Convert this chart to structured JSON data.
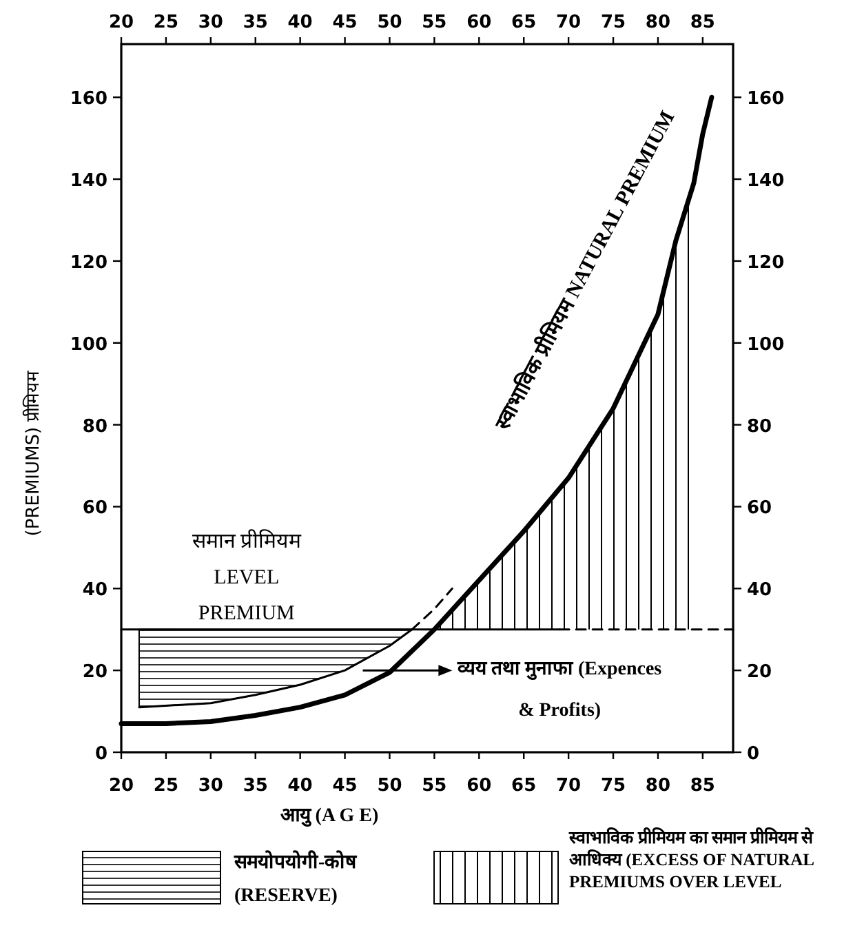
{
  "chart_data": {
    "type": "line",
    "xlabel": "आयु (A G E)",
    "ylabel": "(PREMIUMS) प्रीमियम",
    "xlim": [
      20,
      88.4
    ],
    "xticks": [
      20,
      25,
      30,
      35,
      40,
      45,
      50,
      55,
      60,
      65,
      70,
      75,
      80,
      85
    ],
    "x2lim": [
      20,
      88.4
    ],
    "x2ticks": [
      20,
      25,
      30,
      35,
      40,
      45,
      50,
      55,
      60,
      65,
      70,
      75,
      80,
      85
    ],
    "ylim": [
      0,
      173
    ],
    "yticks": [
      0,
      20,
      40,
      60,
      80,
      100,
      120,
      140,
      160
    ],
    "y2lim": [
      0,
      173
    ],
    "y2ticks": [
      0,
      20,
      40,
      60,
      80,
      100,
      120,
      140,
      160
    ],
    "line_style": "solid",
    "marker": "none",
    "series": [
      {
        "name": "स्वाभाविक प्रीमियम NATURAL PREMIUM",
        "color": "#000000",
        "x": [
          20,
          25,
          30,
          35,
          40,
          45,
          50,
          55,
          60,
          65,
          70,
          75,
          80,
          82,
          84,
          85,
          86
        ],
        "values": [
          7,
          7,
          7.5,
          9,
          11,
          14,
          19.5,
          30,
          42,
          54,
          67,
          84,
          107,
          125,
          139,
          151,
          160
        ],
        "lower": [
          null,
          null,
          null,
          null,
          null,
          null,
          null,
          30,
          30,
          30,
          30,
          30,
          30,
          30,
          30,
          null,
          null
        ],
        "upper": [
          null,
          null,
          null,
          null,
          null,
          null,
          null,
          30,
          42,
          54,
          67,
          84,
          107,
          125,
          139,
          null,
          null
        ]
      },
      {
        "name": "समान प्रीमियम LEVEL PREMIUM",
        "color": "#000000",
        "x": [
          20,
          69
        ],
        "values": [
          30,
          30
        ]
      },
      {
        "color": "#000000",
        "line_style": "dashed",
        "x": [
          69,
          88.4
        ],
        "values": [
          30,
          30
        ]
      },
      {
        "color": "#000000",
        "x": [
          22,
          30,
          35,
          40,
          45,
          50,
          52.5
        ],
        "values": [
          11,
          12,
          14,
          16.5,
          20,
          26,
          30
        ],
        "lower": [
          11,
          12,
          14,
          16.5,
          20,
          26,
          30
        ],
        "upper": [
          30,
          30,
          30,
          30,
          30,
          30,
          30
        ]
      },
      {
        "color": "#000000",
        "line_style": "dashed",
        "x": [
          52.5,
          55,
          57
        ],
        "values": [
          30,
          35,
          40
        ]
      }
    ],
    "annotations": [
      "व्यय तथा मुनाफा (Expences & Profits)",
      "समयोपयोगी-कोष (RESERVE)",
      "स्वाभाविक प्रीमियम का समान प्रीमियम से आधिक्य (EXCESS OF NATURAL PREMIUMS OVER LEVEL"
    ]
  }
}
